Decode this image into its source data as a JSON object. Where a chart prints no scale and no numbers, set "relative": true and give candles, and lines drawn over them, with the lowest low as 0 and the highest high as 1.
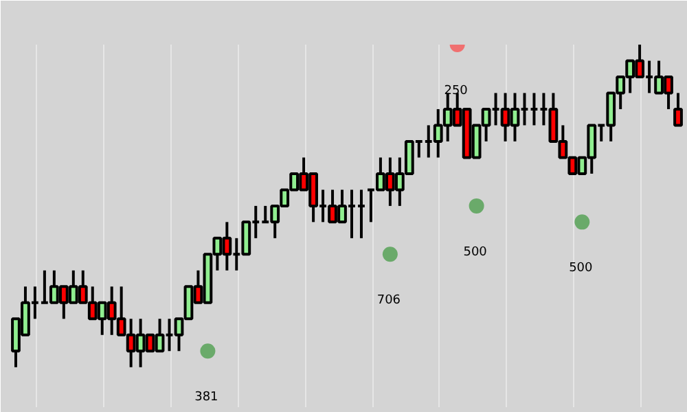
{
  "chart_data": {
    "type": "candlestick",
    "relative": true,
    "grid": "x",
    "categories": [
      null,
      null,
      null,
      null,
      null,
      null,
      null,
      null,
      null,
      null,
      null,
      null,
      null,
      null,
      null,
      null,
      null,
      null,
      null,
      null,
      null,
      null,
      null,
      null,
      null,
      null,
      null,
      null,
      null,
      null,
      null,
      null,
      null,
      null,
      null,
      null,
      null,
      null,
      null,
      null,
      null,
      null,
      null,
      null,
      null,
      null,
      null,
      null,
      null,
      null,
      null,
      null,
      null,
      null,
      null,
      null,
      null,
      null,
      null,
      null,
      null,
      null,
      null,
      null,
      null,
      null,
      null,
      null,
      null,
      null
    ],
    "ohlc": [
      [
        0.05,
        0.15,
        0,
        0.15
      ],
      [
        0.1,
        0.25,
        0.1,
        0.2
      ],
      [
        0.2,
        0.25,
        0.15,
        0.2
      ],
      [
        0.2,
        0.3,
        0.2,
        0.2
      ],
      [
        0.2,
        0.3,
        0.2,
        0.25
      ],
      [
        0.25,
        0.25,
        0.15,
        0.2
      ],
      [
        0.2,
        0.3,
        0.2,
        0.25
      ],
      [
        0.25,
        0.3,
        0.2,
        0.2
      ],
      [
        0.2,
        0.25,
        0.15,
        0.15
      ],
      [
        0.15,
        0.2,
        0.1,
        0.2
      ],
      [
        0.2,
        0.25,
        0.1,
        0.15
      ],
      [
        0.15,
        0.25,
        0.1,
        0.1
      ],
      [
        0.1,
        0.15,
        0,
        0.05
      ],
      [
        0.05,
        0.15,
        0,
        0.1
      ],
      [
        0.1,
        0.1,
        0.05,
        0.05
      ],
      [
        0.05,
        0.15,
        0.05,
        0.1
      ],
      [
        0.1,
        0.15,
        0.05,
        0.1
      ],
      [
        0.1,
        0.15,
        0.05,
        0.15
      ],
      [
        0.15,
        0.25,
        0.15,
        0.25
      ],
      [
        0.25,
        0.3,
        0.2,
        0.2
      ],
      [
        0.2,
        0.35,
        0.2,
        0.35
      ],
      [
        0.35,
        0.4,
        0.3,
        0.4
      ],
      [
        0.4,
        0.45,
        0.3,
        0.35
      ],
      [
        0.35,
        0.4,
        0.3,
        0.35
      ],
      [
        0.35,
        0.45,
        0.35,
        0.45
      ],
      [
        0.45,
        0.5,
        0.4,
        0.45
      ],
      [
        0.45,
        0.5,
        0.45,
        0.45
      ],
      [
        0.45,
        0.5,
        0.4,
        0.5
      ],
      [
        0.5,
        0.55,
        0.5,
        0.55
      ],
      [
        0.55,
        0.6,
        0.55,
        0.6
      ],
      [
        0.6,
        0.65,
        0.55,
        0.55
      ],
      [
        0.6,
        0.6,
        0.45,
        0.5
      ],
      [
        0.5,
        0.55,
        0.45,
        0.5
      ],
      [
        0.5,
        0.55,
        0.45,
        0.45
      ],
      [
        0.45,
        0.55,
        0.45,
        0.5
      ],
      [
        0.5,
        0.55,
        0.4,
        0.5
      ],
      [
        0.5,
        0.55,
        0.4,
        0.5
      ],
      [
        0.55,
        0.55,
        0.45,
        0.55
      ],
      [
        0.55,
        0.65,
        0.55,
        0.6
      ],
      [
        0.6,
        0.65,
        0.5,
        0.55
      ],
      [
        0.55,
        0.65,
        0.5,
        0.6
      ],
      [
        0.6,
        0.7,
        0.6,
        0.7
      ],
      [
        0.7,
        0.7,
        0.65,
        0.7
      ],
      [
        0.7,
        0.75,
        0.65,
        0.7
      ],
      [
        0.7,
        0.8,
        0.65,
        0.75
      ],
      [
        0.75,
        0.85,
        0.7,
        0.8
      ],
      [
        0.8,
        0.85,
        0.75,
        0.75
      ],
      [
        0.8,
        0.8,
        0.65,
        0.65
      ],
      [
        0.65,
        0.75,
        0.65,
        0.75
      ],
      [
        0.75,
        0.8,
        0.7,
        0.8
      ],
      [
        0.8,
        0.85,
        0.75,
        0.8
      ],
      [
        0.8,
        0.85,
        0.7,
        0.75
      ],
      [
        0.75,
        0.85,
        0.7,
        0.8
      ],
      [
        0.8,
        0.85,
        0.75,
        0.8
      ],
      [
        0.8,
        0.85,
        0.75,
        0.8
      ],
      [
        0.8,
        0.85,
        0.75,
        0.8
      ],
      [
        0.8,
        0.85,
        0.7,
        0.7
      ],
      [
        0.7,
        0.75,
        0.65,
        0.65
      ],
      [
        0.65,
        0.65,
        0.6,
        0.6
      ],
      [
        0.6,
        0.65,
        0.6,
        0.65
      ],
      [
        0.65,
        0.75,
        0.6,
        0.75
      ],
      [
        0.75,
        0.75,
        0.7,
        0.75
      ],
      [
        0.75,
        0.85,
        0.7,
        0.85
      ],
      [
        0.85,
        0.9,
        0.8,
        0.9
      ],
      [
        0.9,
        0.95,
        0.85,
        0.95
      ],
      [
        0.95,
        1,
        0.9,
        0.9
      ],
      [
        0.9,
        0.95,
        0.85,
        0.9
      ],
      [
        0.85,
        0.95,
        0.85,
        0.9
      ],
      [
        0.9,
        0.9,
        0.8,
        0.85
      ],
      [
        0.8,
        0.85,
        0.75,
        0.75
      ]
    ],
    "series": [
      {
        "type": "scatter",
        "marker": "circle",
        "colors": [
          null,
          null,
          null,
          null,
          null,
          null,
          null,
          null,
          null,
          null,
          null,
          null,
          null,
          null,
          null,
          null,
          null,
          null,
          null,
          null,
          "#6aaa6a",
          null,
          null,
          null,
          null,
          null,
          null,
          null,
          null,
          null,
          null,
          null,
          null,
          null,
          null,
          null,
          null,
          null,
          null,
          "#6aaa6a",
          null,
          null,
          null,
          null,
          null,
          null,
          "#f07070",
          null,
          "#6aaa6a",
          null,
          null,
          null,
          null,
          null,
          null,
          null,
          null,
          null,
          null,
          "#6aaa6a",
          null,
          null,
          null,
          null,
          null,
          null,
          null,
          null,
          null,
          null
        ],
        "values": [
          null,
          null,
          null,
          null,
          null,
          null,
          null,
          null,
          null,
          null,
          null,
          null,
          null,
          null,
          null,
          null,
          null,
          null,
          null,
          null,
          0.05,
          null,
          null,
          null,
          null,
          null,
          null,
          null,
          null,
          null,
          null,
          null,
          null,
          null,
          null,
          null,
          null,
          null,
          null,
          0.35,
          null,
          null,
          null,
          null,
          null,
          null,
          1,
          null,
          0.5,
          null,
          null,
          null,
          null,
          null,
          null,
          null,
          null,
          null,
          null,
          0.45,
          null,
          null,
          null,
          null,
          null,
          null,
          null,
          null,
          null,
          null
        ]
      }
    ],
    "annotations": [
      "381",
      "706",
      "250",
      "500",
      "500"
    ]
  }
}
